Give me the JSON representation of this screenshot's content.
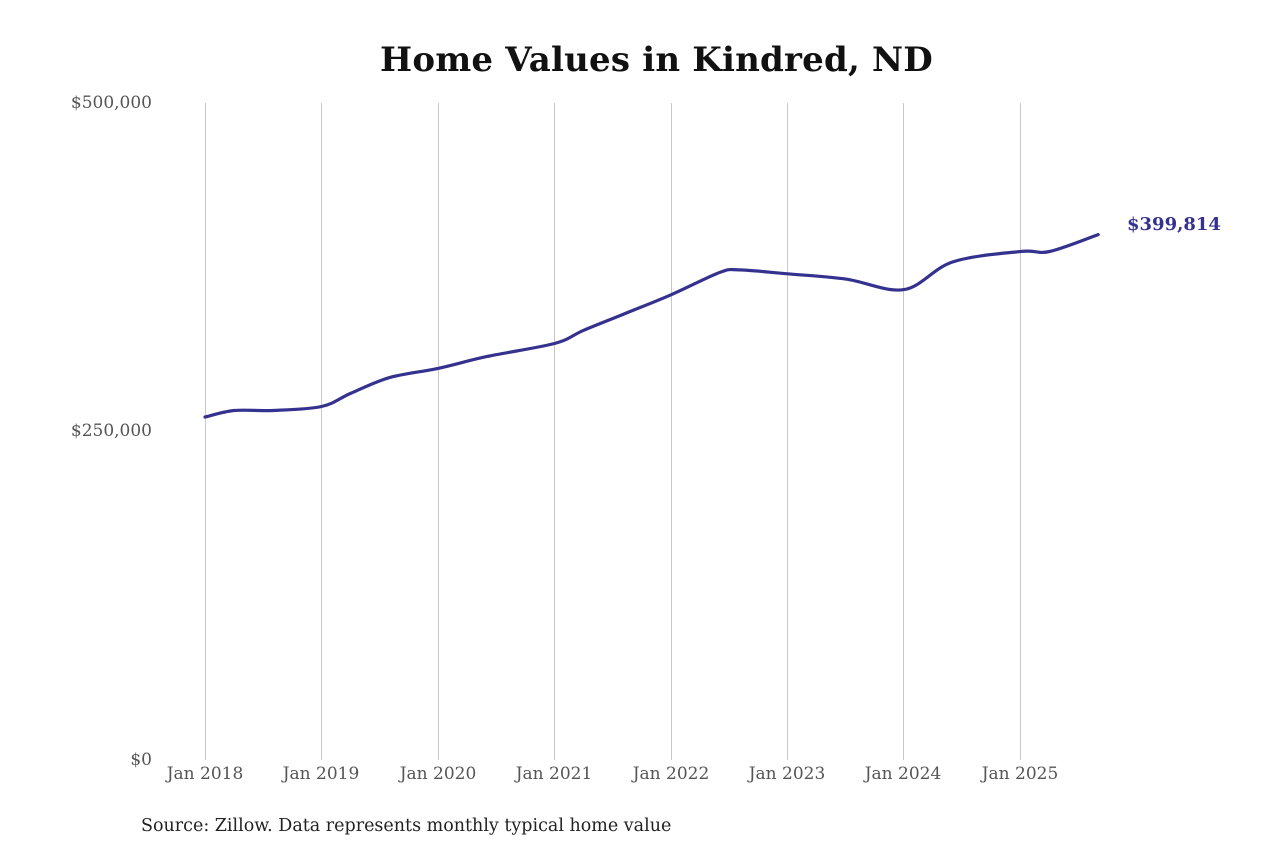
{
  "chart_data": {
    "type": "line",
    "title": "Home Values in Kindred, ND",
    "xlabel": "",
    "ylabel": "",
    "ylim": [
      0,
      500000
    ],
    "grid": {
      "vertical": true,
      "horizontal": false
    },
    "legend": null,
    "y_ticks": [
      "$500,000",
      "$250,000",
      "$0"
    ],
    "y_tick_values": [
      500000,
      250000,
      0
    ],
    "x_ticks": [
      "Jan 2018",
      "Jan 2019",
      "Jan 2020",
      "Jan 2021",
      "Jan 2022",
      "Jan 2023",
      "Jan 2024",
      "Jan 2025"
    ],
    "series": [
      {
        "name": "Typical home value",
        "color": "#35318f",
        "x": [
          "2018-01",
          "2018-04",
          "2018-08",
          "2019-01",
          "2019-04",
          "2019-08",
          "2020-01",
          "2020-06",
          "2021-01",
          "2021-04",
          "2021-08",
          "2022-01",
          "2022-06",
          "2022-08",
          "2023-01",
          "2023-07",
          "2024-01",
          "2024-06",
          "2025-01",
          "2025-04",
          "2025-09"
        ],
        "values": [
          261000,
          266000,
          266000,
          269000,
          279000,
          291000,
          298000,
          307000,
          317000,
          327000,
          339000,
          354000,
          371000,
          373000,
          370000,
          366000,
          358000,
          379000,
          387000,
          387000,
          399814
        ]
      }
    ],
    "annotations": [
      {
        "text": "$399,814",
        "at": "2025-09",
        "value": 399814
      }
    ],
    "source": "Source: Zillow. Data represents monthly typical home value"
  },
  "header": {
    "title": "Home Values in Kindred, ND"
  },
  "axis": {
    "y": [
      "$500,000",
      "$250,000",
      "$0"
    ],
    "x": [
      "Jan 2018",
      "Jan 2019",
      "Jan 2020",
      "Jan 2021",
      "Jan 2022",
      "Jan 2023",
      "Jan 2024",
      "Jan 2025"
    ]
  },
  "end_label": "$399,814",
  "footer": {
    "source": "Source: Zillow. Data represents monthly typical home value"
  },
  "colors": {
    "line": "#35318f",
    "grid": "#c8c8c8",
    "axis_text": "#555555",
    "title": "#111111"
  }
}
